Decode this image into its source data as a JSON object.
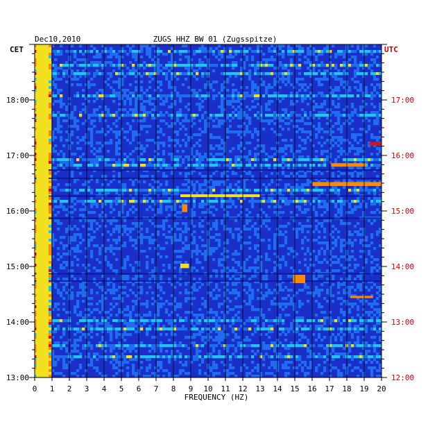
{
  "chart_data": {
    "type": "heatmap",
    "date": "Dec10,2010",
    "title": "ZUGS HHZ BW 01 (Zugsspitze)",
    "xlabel": "FREQUENCY (HZ)",
    "left_zone": "CET",
    "right_zone": "UTC",
    "xlim": [
      0,
      20
    ],
    "x_ticks": [
      "0",
      "1",
      "2",
      "3",
      "4",
      "5",
      "6",
      "7",
      "8",
      "9",
      "10",
      "11",
      "12",
      "13",
      "14",
      "15",
      "16",
      "17",
      "18",
      "19",
      "20"
    ],
    "ylim_cet_hours": [
      13,
      19
    ],
    "cet_ticks": [
      "18:00",
      "17:00",
      "16:00",
      "15:00",
      "14:00",
      "13:00"
    ],
    "utc_ticks": [
      "17:00",
      "16:00",
      "15:00",
      "14:00",
      "13:00",
      "12:00"
    ],
    "colors": {
      "background": "#1a2fc8",
      "dark_band": "#0a1590",
      "cet_label": "#000000",
      "utc_label": "#d00000"
    },
    "colormap": [
      "#0a1590",
      "#1a2fc8",
      "#1f6cf0",
      "#22c4f0",
      "#f0e020",
      "#ff8a00",
      "#e01010"
    ],
    "features": [
      {
        "note": "low-frequency energy band",
        "freq_hz": [
          0.1,
          0.8
        ],
        "cet_hours": [
          13.0,
          19.0
        ],
        "level": 0.7
      },
      {
        "note": "strong event",
        "freq_hz": [
          19.3,
          20
        ],
        "cet_hours": [
          17.18,
          17.24
        ],
        "level": 1.0
      },
      {
        "note": "burst",
        "freq_hz": [
          17.1,
          19.1
        ],
        "cet_hours": [
          16.8,
          16.86
        ],
        "level": 0.85
      },
      {
        "note": "burst",
        "freq_hz": [
          16.0,
          20.0
        ],
        "cet_hours": [
          16.45,
          16.52
        ],
        "level": 0.8
      },
      {
        "note": "burst",
        "freq_hz": [
          8.4,
          13.0
        ],
        "cet_hours": [
          16.25,
          16.3
        ],
        "level": 0.7
      },
      {
        "note": "burst",
        "freq_hz": [
          8.5,
          8.8
        ],
        "cet_hours": [
          15.98,
          16.12
        ],
        "level": 0.85
      },
      {
        "note": "burst",
        "freq_hz": [
          14.9,
          15.6
        ],
        "cet_hours": [
          14.7,
          14.85
        ],
        "level": 0.8
      },
      {
        "note": "burst",
        "freq_hz": [
          18.2,
          19.5
        ],
        "cet_hours": [
          14.43,
          14.47
        ],
        "level": 0.75
      },
      {
        "note": "burst",
        "freq_hz": [
          8.4,
          8.9
        ],
        "cet_hours": [
          14.97,
          15.05
        ],
        "level": 0.7
      }
    ]
  }
}
